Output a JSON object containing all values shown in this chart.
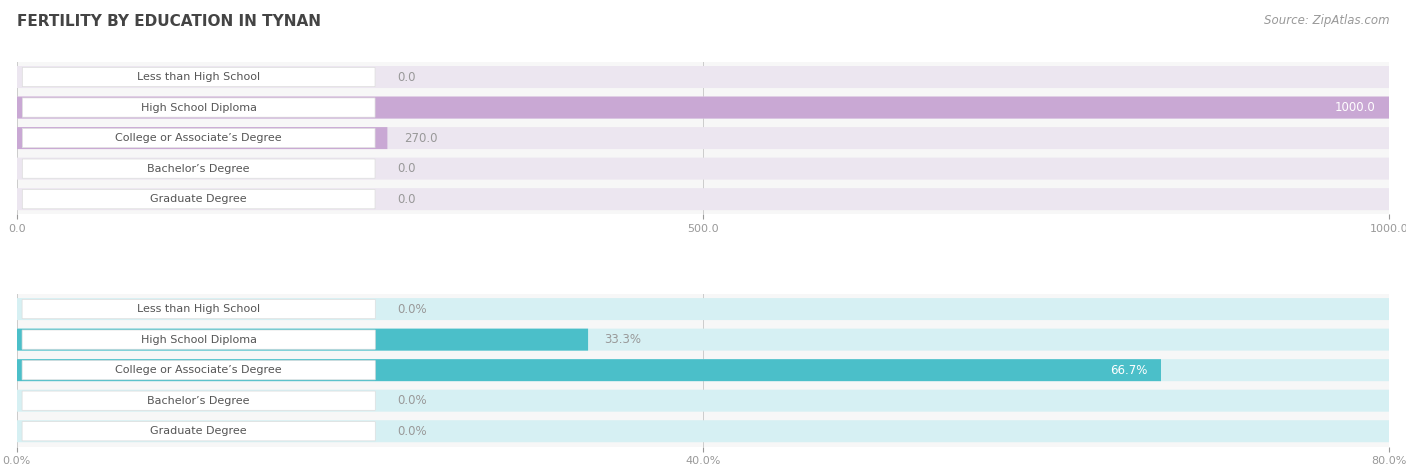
{
  "title": "FERTILITY BY EDUCATION IN TYNAN",
  "source": "Source: ZipAtlas.com",
  "top_chart": {
    "categories": [
      "Less than High School",
      "High School Diploma",
      "College or Associate’s Degree",
      "Bachelor’s Degree",
      "Graduate Degree"
    ],
    "values": [
      0.0,
      1000.0,
      270.0,
      0.0,
      0.0
    ],
    "xlim": [
      0,
      1000
    ],
    "xticks": [
      0.0,
      500.0,
      1000.0
    ],
    "bar_color": "#c9a8d4",
    "bar_bg_color": "#ece6f0",
    "label_color_inside": "#ffffff",
    "label_color_outside": "#999999"
  },
  "bottom_chart": {
    "categories": [
      "Less than High School",
      "High School Diploma",
      "College or Associate’s Degree",
      "Bachelor’s Degree",
      "Graduate Degree"
    ],
    "values": [
      0.0,
      33.3,
      66.7,
      0.0,
      0.0
    ],
    "xlim": [
      0,
      80
    ],
    "xticks": [
      0.0,
      40.0,
      80.0
    ],
    "bar_color": "#4bbfc9",
    "bar_bg_color": "#d6f0f3",
    "label_color_inside": "#ffffff",
    "label_color_outside": "#999999"
  },
  "label_box_text_color": "#555555",
  "title_color": "#444444",
  "source_color": "#999999",
  "title_fontsize": 11,
  "source_fontsize": 8.5,
  "label_fontsize": 8,
  "value_fontsize": 8.5,
  "fig_bg": "#ffffff",
  "chart_bg": "#f7f7f7"
}
